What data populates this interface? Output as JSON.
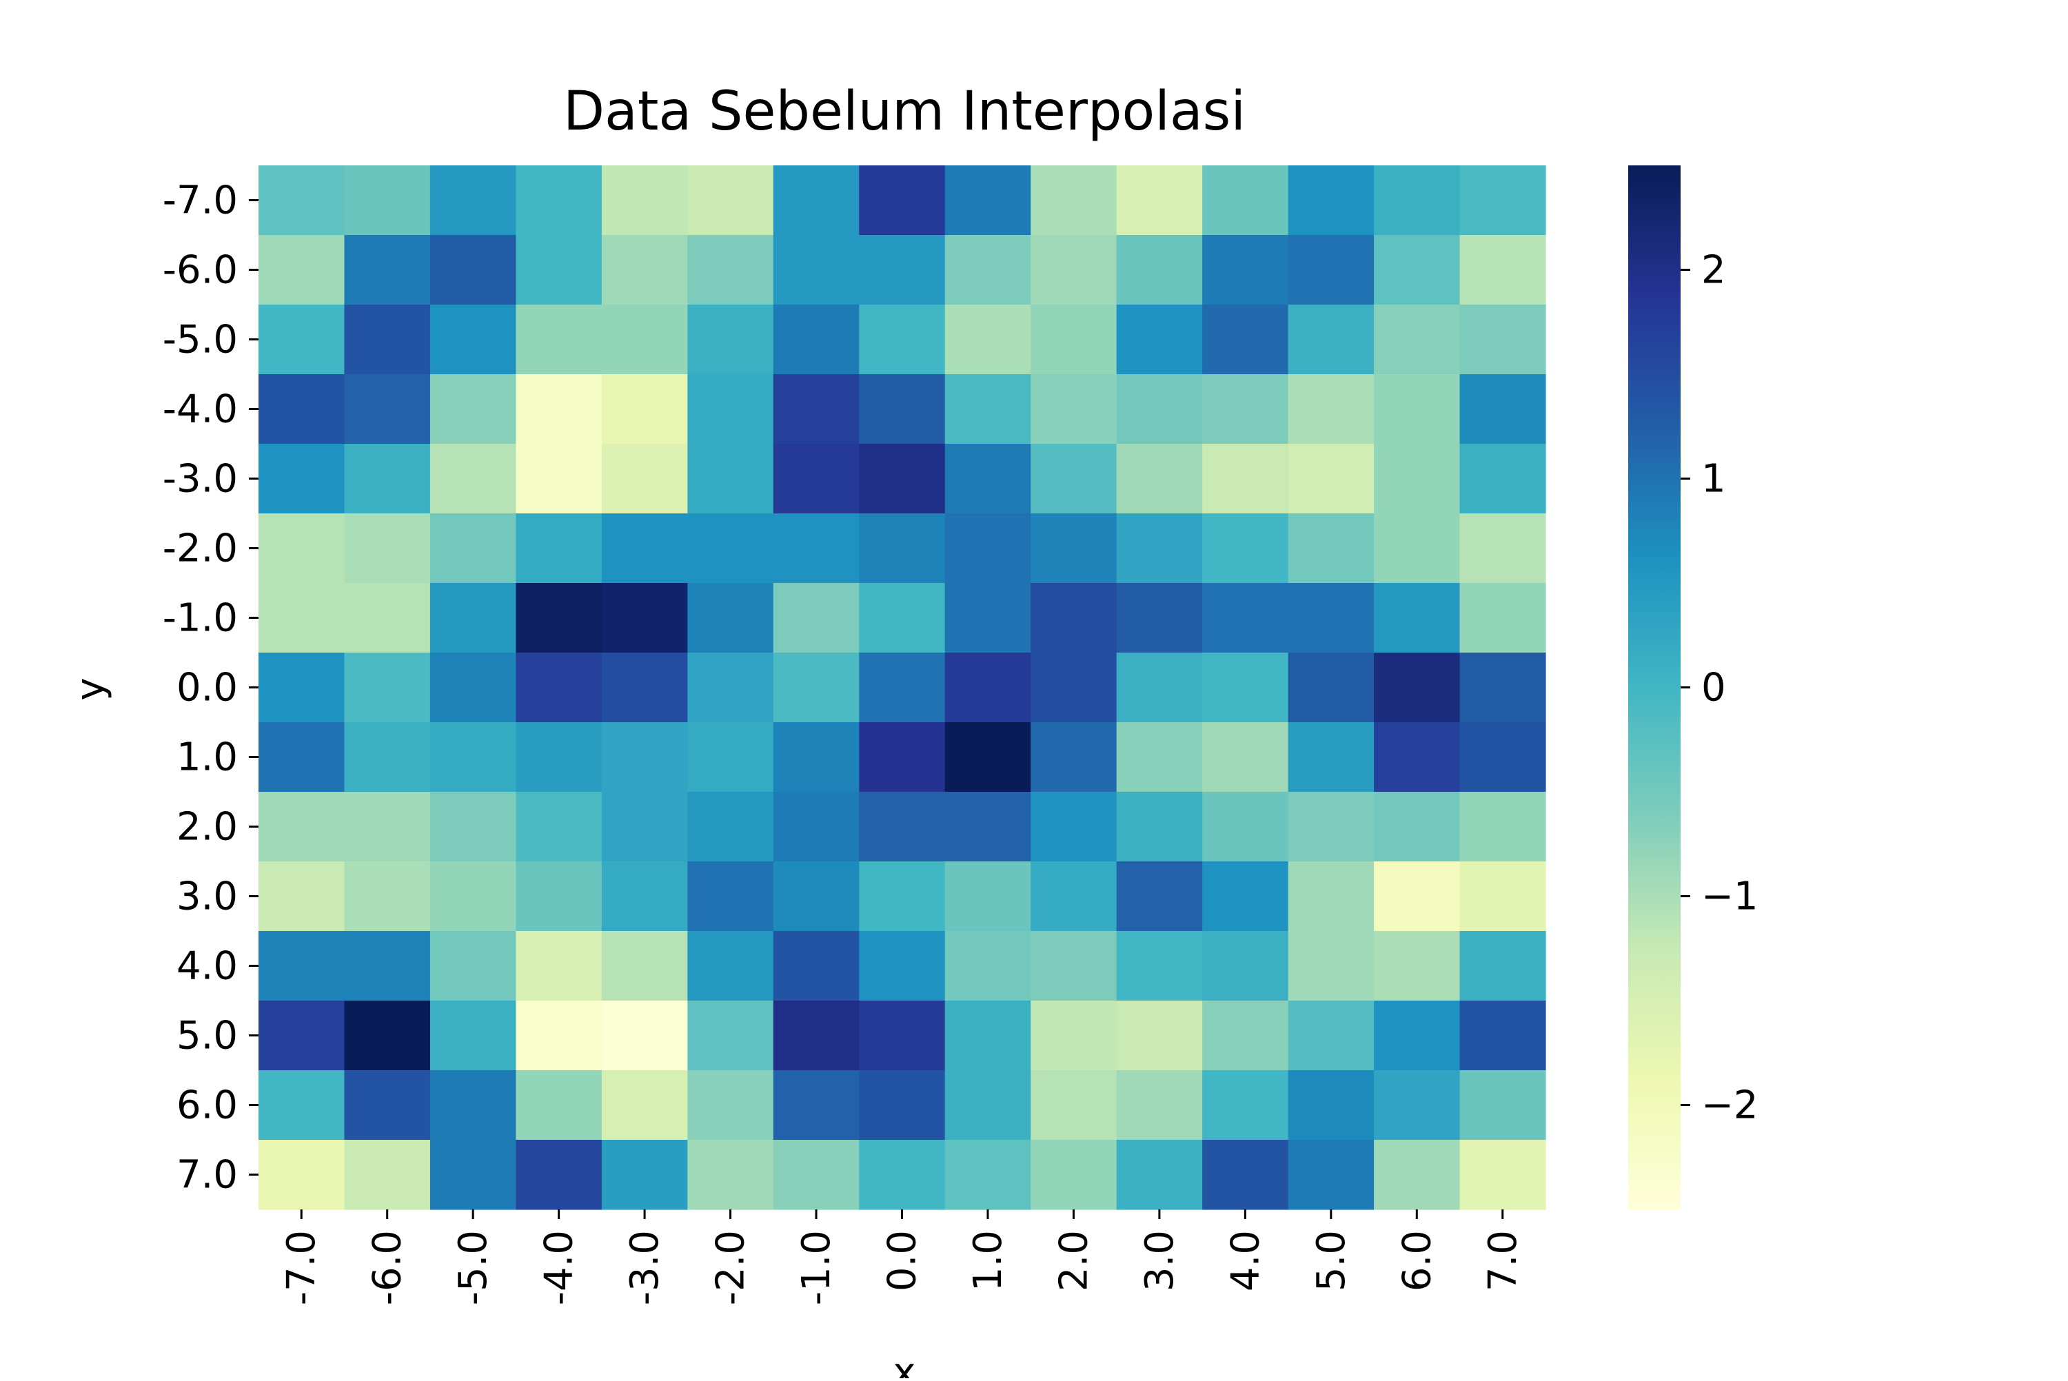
{
  "chart_data": {
    "type": "heatmap",
    "title": "Data Sebelum Interpolasi",
    "xlabel": "x",
    "ylabel": "y",
    "x_categories": [
      "-7.0",
      "-6.0",
      "-5.0",
      "-4.0",
      "-3.0",
      "-2.0",
      "-1.0",
      "0.0",
      "1.0",
      "2.0",
      "3.0",
      "4.0",
      "5.0",
      "6.0",
      "7.0"
    ],
    "y_categories": [
      "-7.0",
      "-6.0",
      "-5.0",
      "-4.0",
      "-3.0",
      "-2.0",
      "-1.0",
      "0.0",
      "1.0",
      "2.0",
      "3.0",
      "4.0",
      "5.0",
      "6.0",
      "7.0"
    ],
    "values": [
      [
        -0.3,
        -0.4,
        0.5,
        0.0,
        -1.2,
        -1.3,
        0.5,
        1.8,
        0.9,
        -1.0,
        -1.5,
        -0.4,
        0.6,
        0.1,
        -0.1
      ],
      [
        -0.9,
        0.9,
        1.3,
        0.0,
        -0.9,
        -0.6,
        0.5,
        0.5,
        -0.6,
        -0.9,
        -0.4,
        0.9,
        1.0,
        -0.3,
        -1.1
      ],
      [
        0.0,
        1.4,
        0.6,
        -0.8,
        -0.8,
        0.1,
        0.9,
        0.0,
        -1.0,
        -0.8,
        0.6,
        1.1,
        0.1,
        -0.7,
        -0.6
      ],
      [
        1.4,
        1.2,
        -0.7,
        -2.2,
        -1.8,
        0.2,
        1.7,
        1.3,
        -0.1,
        -0.7,
        -0.5,
        -0.6,
        -1.0,
        -0.8,
        0.7
      ],
      [
        0.6,
        0.1,
        -1.1,
        -2.2,
        -1.6,
        0.2,
        1.8,
        2.0,
        0.9,
        -0.2,
        -0.9,
        -1.3,
        -1.4,
        -0.8,
        0.1
      ],
      [
        -1.1,
        -1.0,
        -0.5,
        0.2,
        0.6,
        0.6,
        0.6,
        0.8,
        1.0,
        0.8,
        0.3,
        0.0,
        -0.5,
        -0.8,
        -1.1
      ],
      [
        -1.1,
        -1.1,
        0.5,
        2.4,
        2.3,
        0.8,
        -0.6,
        0.0,
        1.0,
        1.5,
        1.3,
        1.0,
        1.0,
        0.5,
        -0.8
      ],
      [
        0.6,
        -0.1,
        0.8,
        1.7,
        1.5,
        0.3,
        -0.1,
        1.0,
        1.8,
        1.5,
        0.1,
        0.0,
        1.3,
        2.1,
        1.3
      ],
      [
        1.0,
        0.1,
        0.2,
        0.4,
        0.3,
        0.2,
        0.8,
        1.9,
        2.5,
        1.1,
        -0.7,
        -0.9,
        0.4,
        1.7,
        1.4
      ],
      [
        -0.9,
        -0.9,
        -0.6,
        -0.1,
        0.3,
        0.5,
        0.9,
        1.2,
        1.2,
        0.6,
        0.1,
        -0.4,
        -0.6,
        -0.5,
        -0.8
      ],
      [
        -1.3,
        -1.0,
        -0.8,
        -0.4,
        0.2,
        1.0,
        0.7,
        0.0,
        -0.4,
        0.2,
        1.2,
        0.6,
        -0.9,
        -2.1,
        -1.7
      ],
      [
        0.8,
        0.8,
        -0.5,
        -1.5,
        -1.1,
        0.5,
        1.4,
        0.6,
        -0.5,
        -0.6,
        0.0,
        0.1,
        -0.9,
        -1.0,
        0.1
      ],
      [
        1.7,
        2.5,
        0.1,
        -2.3,
        -2.4,
        -0.3,
        2.0,
        1.8,
        0.1,
        -1.2,
        -1.3,
        -0.7,
        -0.2,
        0.6,
        1.4
      ],
      [
        0.0,
        1.4,
        0.9,
        -0.8,
        -1.5,
        -0.7,
        1.2,
        1.4,
        0.1,
        -1.1,
        -0.9,
        0.0,
        0.7,
        0.3,
        -0.4
      ],
      [
        -1.8,
        -1.3,
        0.9,
        1.6,
        0.4,
        -0.9,
        -0.7,
        0.0,
        -0.3,
        -0.8,
        0.1,
        1.4,
        0.9,
        -0.9,
        -1.7
      ]
    ],
    "colormap": "YlGnBu",
    "vmin": -2.5,
    "vmax": 2.5,
    "colorbar_ticks": [
      2,
      1,
      0,
      -1,
      -2
    ],
    "colorbar_labels": [
      "2",
      "1",
      "0",
      "−1",
      "−2"
    ],
    "legend": "right"
  }
}
